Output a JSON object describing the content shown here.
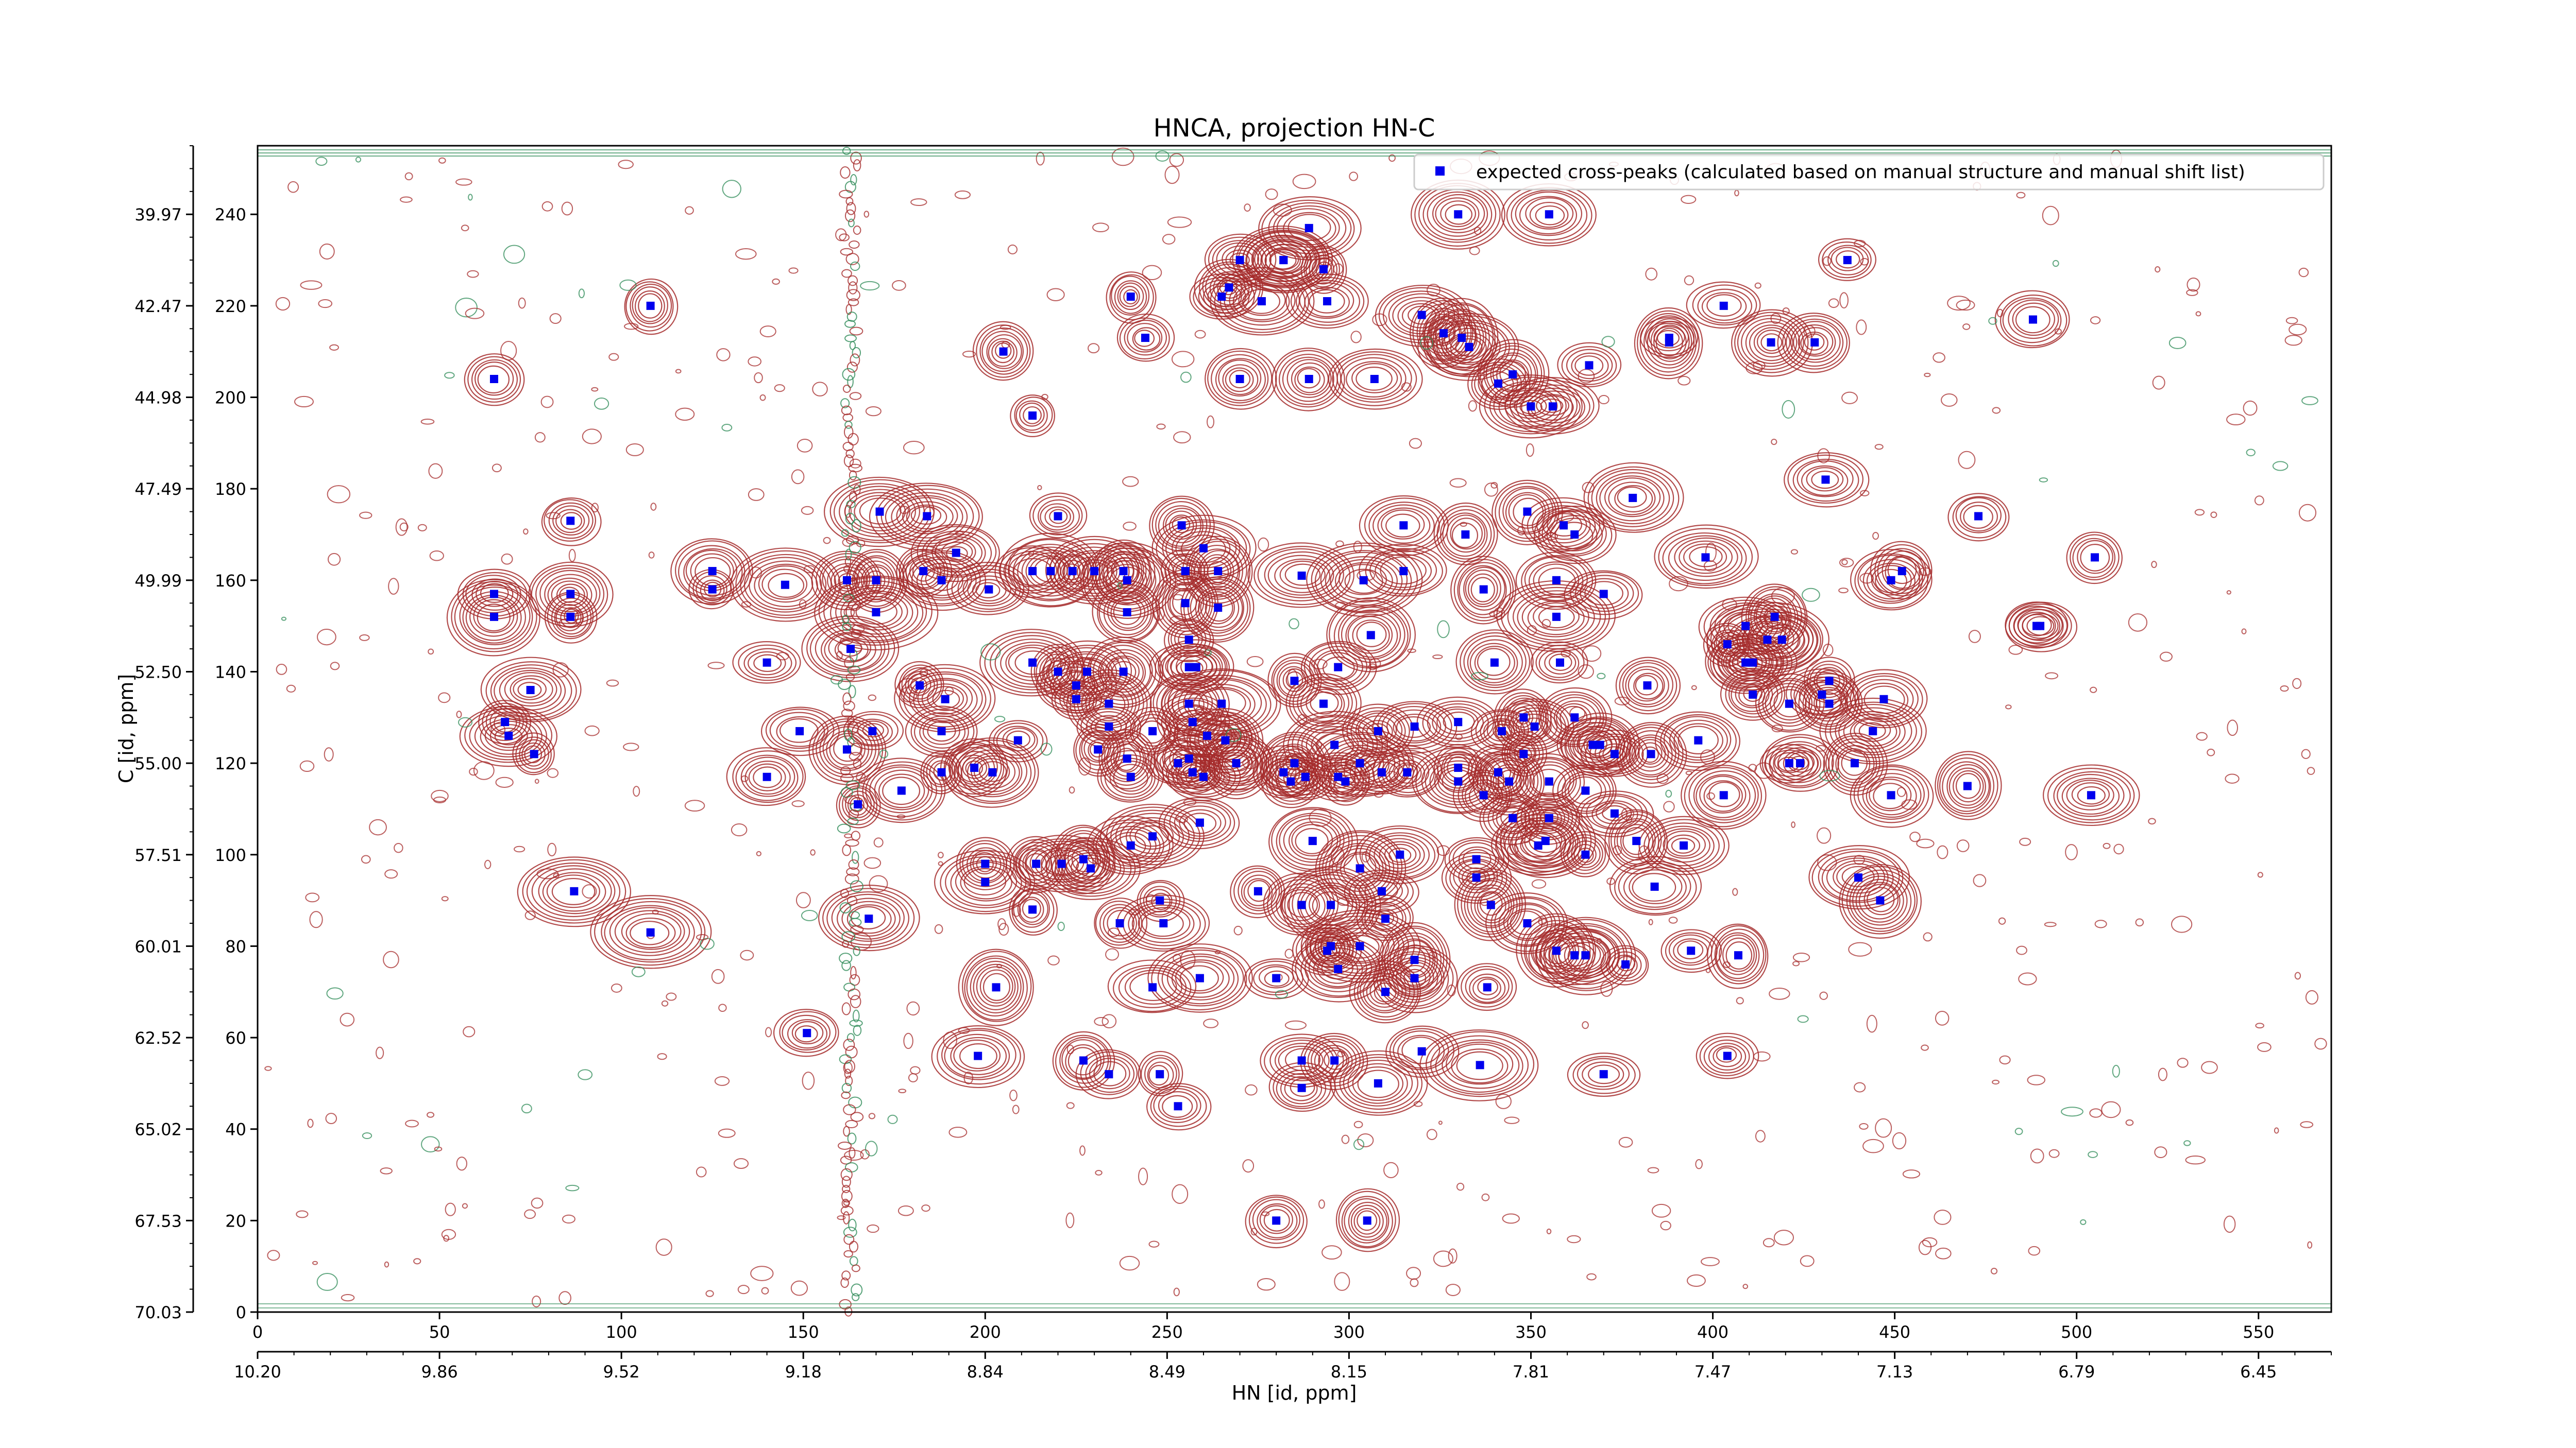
{
  "chart_data": {
    "type": "scatter",
    "title": "HNCA, projection HN-C",
    "xlabel": "HN [id, ppm]",
    "ylabel": "C [id, ppm]",
    "xlim": [
      0,
      570
    ],
    "ylim": [
      0,
      255
    ],
    "grid": false,
    "legend_position": "top-right",
    "colors": {
      "peak_marker": "#0000ee",
      "contour_positive": "#a52a2a",
      "contour_negative": "#2e8b57",
      "legend_border": "#cccccc"
    },
    "x_ticks": [
      0,
      50,
      100,
      150,
      200,
      250,
      300,
      350,
      400,
      450,
      500,
      550
    ],
    "x_tick_labels": [
      "0",
      "50",
      "100",
      "150",
      "200",
      "250",
      "300",
      "350",
      "400",
      "450",
      "500",
      "550"
    ],
    "y_ticks": [
      0,
      20,
      40,
      60,
      80,
      100,
      120,
      140,
      160,
      180,
      200,
      220,
      240
    ],
    "y_tick_labels": [
      "0",
      "20",
      "40",
      "60",
      "80",
      "100",
      "120",
      "140",
      "160",
      "180",
      "200",
      "220",
      "240"
    ],
    "hn_ppm_ticks": [
      {
        "pos": 0,
        "label": "10.20"
      },
      {
        "pos": 50,
        "label": "9.86"
      },
      {
        "pos": 100,
        "label": "9.52"
      },
      {
        "pos": 150,
        "label": "9.18"
      },
      {
        "pos": 200,
        "label": "8.84"
      },
      {
        "pos": 250,
        "label": "8.49"
      },
      {
        "pos": 300,
        "label": "8.15"
      },
      {
        "pos": 350,
        "label": "7.81"
      },
      {
        "pos": 400,
        "label": "7.47"
      },
      {
        "pos": 450,
        "label": "7.13"
      },
      {
        "pos": 500,
        "label": "6.79"
      },
      {
        "pos": 550,
        "label": "6.45"
      }
    ],
    "c_ppm_ticks": [
      {
        "pos": 0,
        "label": "70.03"
      },
      {
        "pos": 20,
        "label": "67.53"
      },
      {
        "pos": 40,
        "label": "65.02"
      },
      {
        "pos": 60,
        "label": "62.52"
      },
      {
        "pos": 80,
        "label": "60.01"
      },
      {
        "pos": 100,
        "label": "57.51"
      },
      {
        "pos": 120,
        "label": "55.00"
      },
      {
        "pos": 140,
        "label": "52.50"
      },
      {
        "pos": 160,
        "label": "49.99"
      },
      {
        "pos": 180,
        "label": "47.49"
      },
      {
        "pos": 200,
        "label": "44.98"
      },
      {
        "pos": 220,
        "label": "42.47"
      },
      {
        "pos": 240,
        "label": "39.97"
      }
    ],
    "series": [
      {
        "name": "expected cross-peaks (calculated based on manual structure and manual shift list)",
        "points": [
          [
            65,
            204
          ],
          [
            65,
            157
          ],
          [
            65,
            152
          ],
          [
            68,
            129
          ],
          [
            69,
            126
          ],
          [
            75,
            136
          ],
          [
            76,
            122
          ],
          [
            86,
            157
          ],
          [
            86,
            152
          ],
          [
            86,
            173
          ],
          [
            87,
            92
          ],
          [
            108,
            220
          ],
          [
            108,
            83
          ],
          [
            125,
            162
          ],
          [
            125,
            158
          ],
          [
            140,
            142
          ],
          [
            140,
            117
          ],
          [
            145,
            159
          ],
          [
            151,
            61
          ],
          [
            149,
            127
          ],
          [
            162,
            160
          ],
          [
            162,
            123
          ],
          [
            163,
            145
          ],
          [
            165,
            111
          ],
          [
            168,
            86
          ],
          [
            169,
            127
          ],
          [
            170,
            160
          ],
          [
            170,
            153
          ],
          [
            171,
            175
          ],
          [
            177,
            114
          ],
          [
            182,
            137
          ],
          [
            183,
            162
          ],
          [
            184,
            174
          ],
          [
            188,
            160
          ],
          [
            189,
            134
          ],
          [
            188,
            127
          ],
          [
            188,
            118
          ],
          [
            192,
            166
          ],
          [
            197,
            119
          ],
          [
            202,
            118
          ],
          [
            201,
            158
          ],
          [
            200,
            98
          ],
          [
            200,
            94
          ],
          [
            198,
            56
          ],
          [
            203,
            71
          ],
          [
            205,
            210
          ],
          [
            209,
            125
          ],
          [
            213,
            196
          ],
          [
            213,
            162
          ],
          [
            213,
            142
          ],
          [
            214,
            98
          ],
          [
            213,
            88
          ],
          [
            218,
            162
          ],
          [
            220,
            174
          ],
          [
            220,
            140
          ],
          [
            221,
            98
          ],
          [
            224,
            162
          ],
          [
            225,
            137
          ],
          [
            225,
            134
          ],
          [
            228,
            140
          ],
          [
            227,
            99
          ],
          [
            227,
            55
          ],
          [
            229,
            97
          ],
          [
            230,
            162
          ],
          [
            231,
            123
          ],
          [
            234,
            52
          ],
          [
            234,
            133
          ],
          [
            234,
            128
          ],
          [
            237,
            85
          ],
          [
            238,
            162
          ],
          [
            239,
            160
          ],
          [
            239,
            153
          ],
          [
            239,
            121
          ],
          [
            240,
            117
          ],
          [
            240,
            102
          ],
          [
            238,
            140
          ],
          [
            240,
            222
          ],
          [
            244,
            213
          ],
          [
            246,
            127
          ],
          [
            246,
            104
          ],
          [
            248,
            90
          ],
          [
            249,
            85
          ],
          [
            248,
            52
          ],
          [
            246,
            71
          ],
          [
            253,
            120
          ],
          [
            255,
            162
          ],
          [
            253,
            45
          ],
          [
            254,
            172
          ],
          [
            255,
            155
          ],
          [
            256,
            147
          ],
          [
            256,
            141
          ],
          [
            256,
            133
          ],
          [
            257,
            129
          ],
          [
            256,
            121
          ],
          [
            257,
            118
          ],
          [
            258,
            141
          ],
          [
            260,
            167
          ],
          [
            259,
            107
          ],
          [
            259,
            73
          ],
          [
            260,
            117
          ],
          [
            261,
            126
          ],
          [
            265,
            222
          ],
          [
            264,
            162
          ],
          [
            264,
            154
          ],
          [
            265,
            133
          ],
          [
            266,
            125
          ],
          [
            267,
            224
          ],
          [
            269,
            120
          ],
          [
            270,
            230
          ],
          [
            270,
            204
          ],
          [
            269,
            120
          ],
          [
            276,
            221
          ],
          [
            282,
            230
          ],
          [
            282,
            230
          ],
          [
            275,
            92
          ],
          [
            280,
            73
          ],
          [
            282,
            118
          ],
          [
            284,
            116
          ],
          [
            285,
            120
          ],
          [
            285,
            138
          ],
          [
            287,
            89
          ],
          [
            287,
            161
          ],
          [
            287,
            49
          ],
          [
            287,
            55
          ],
          [
            289,
            237
          ],
          [
            289,
            204
          ],
          [
            288,
            117
          ],
          [
            290,
            103
          ],
          [
            293,
            228
          ],
          [
            293,
            133
          ],
          [
            294,
            221
          ],
          [
            294,
            79
          ],
          [
            295,
            80
          ],
          [
            295,
            89
          ],
          [
            297,
            75
          ],
          [
            296,
            55
          ],
          [
            297,
            141
          ],
          [
            297,
            117
          ],
          [
            296,
            124
          ],
          [
            299,
            116
          ],
          [
            303,
            97
          ],
          [
            303,
            80
          ],
          [
            304,
            160
          ],
          [
            303,
            120
          ],
          [
            306,
            148
          ],
          [
            307,
            204
          ],
          [
            308,
            127
          ],
          [
            309,
            118
          ],
          [
            308,
            50
          ],
          [
            309,
            92
          ],
          [
            310,
            86
          ],
          [
            310,
            70
          ],
          [
            315,
            162
          ],
          [
            315,
            172
          ],
          [
            314,
            100
          ],
          [
            316,
            118
          ],
          [
            318,
            128
          ],
          [
            318,
            73
          ],
          [
            318,
            77
          ],
          [
            320,
            57
          ],
          [
            320,
            218
          ],
          [
            326,
            214
          ],
          [
            330,
            129
          ],
          [
            330,
            119
          ],
          [
            330,
            116
          ],
          [
            332,
            170
          ],
          [
            331,
            213
          ],
          [
            333,
            211
          ],
          [
            335,
            99
          ],
          [
            335,
            95
          ],
          [
            336,
            54
          ],
          [
            337,
            158
          ],
          [
            337,
            113
          ],
          [
            338,
            71
          ],
          [
            339,
            89
          ],
          [
            340,
            142
          ],
          [
            341,
            203
          ],
          [
            341,
            118
          ],
          [
            342,
            127
          ],
          [
            344,
            116
          ],
          [
            345,
            108
          ],
          [
            345,
            205
          ],
          [
            348,
            130
          ],
          [
            348,
            122
          ],
          [
            349,
            175
          ],
          [
            349,
            85
          ],
          [
            350,
            198
          ],
          [
            351,
            128
          ],
          [
            352,
            102
          ],
          [
            354,
            103
          ],
          [
            355,
            116
          ],
          [
            355,
            108
          ],
          [
            356,
            198
          ],
          [
            357,
            79
          ],
          [
            357,
            160
          ],
          [
            357,
            152
          ],
          [
            358,
            142
          ],
          [
            359,
            172
          ],
          [
            362,
            78
          ],
          [
            362,
            130
          ],
          [
            362,
            170
          ],
          [
            365,
            100
          ],
          [
            365,
            78
          ],
          [
            365,
            114
          ],
          [
            366,
            207
          ],
          [
            367,
            124
          ],
          [
            369,
            124
          ],
          [
            370,
            52
          ],
          [
            370,
            157
          ],
          [
            373,
            122
          ],
          [
            376,
            76
          ],
          [
            373,
            109
          ],
          [
            378,
            178
          ],
          [
            379,
            103
          ],
          [
            382,
            137
          ],
          [
            383,
            122
          ],
          [
            384,
            93
          ],
          [
            388,
            212
          ],
          [
            388,
            213
          ],
          [
            392,
            102
          ],
          [
            394,
            79
          ],
          [
            398,
            165
          ],
          [
            396,
            125
          ],
          [
            403,
            220
          ],
          [
            403,
            113
          ],
          [
            404,
            56
          ],
          [
            404,
            146
          ],
          [
            407,
            78
          ],
          [
            409,
            150
          ],
          [
            409,
            142
          ],
          [
            411,
            142
          ],
          [
            411,
            135
          ],
          [
            415,
            147
          ],
          [
            417,
            152
          ],
          [
            416,
            212
          ],
          [
            419,
            147
          ],
          [
            421,
            133
          ],
          [
            421,
            120
          ],
          [
            424,
            120
          ],
          [
            428,
            212
          ],
          [
            430,
            135
          ],
          [
            431,
            182
          ],
          [
            432,
            133
          ],
          [
            432,
            138
          ],
          [
            437,
            230
          ],
          [
            439,
            120
          ],
          [
            440,
            95
          ],
          [
            444,
            127
          ],
          [
            447,
            134
          ],
          [
            449,
            113
          ],
          [
            449,
            160
          ],
          [
            446,
            90
          ],
          [
            452,
            162
          ],
          [
            470,
            115
          ],
          [
            473,
            174
          ],
          [
            488,
            217
          ],
          [
            489,
            150
          ],
          [
            490,
            150
          ],
          [
            504,
            113
          ],
          [
            505,
            165
          ],
          [
            280,
            20
          ],
          [
            305,
            20
          ],
          [
            330,
            240
          ],
          [
            355,
            240
          ]
        ]
      }
    ]
  }
}
